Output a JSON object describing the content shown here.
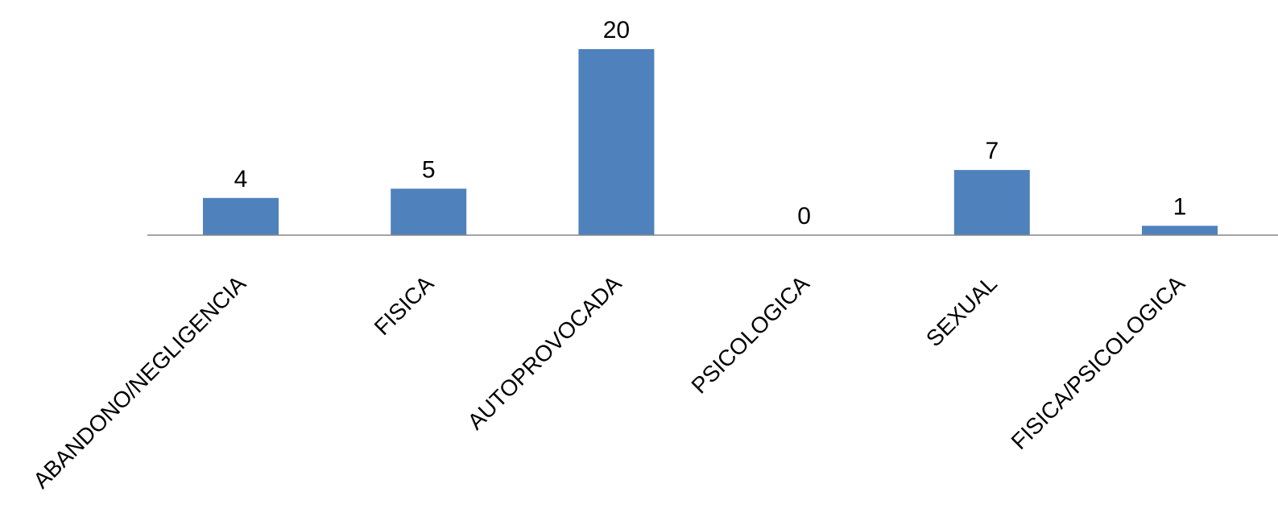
{
  "chart_data": {
    "type": "bar",
    "categories": [
      "ABANDONO/NEGLIGENCIA",
      "FISICA",
      "AUTOPROVOCADA",
      "PSICOLOGICA",
      "SEXUAL",
      "FISICA/PSICOLOGICA"
    ],
    "values": [
      4,
      5,
      20,
      0,
      7,
      1
    ],
    "data_labels": [
      "4",
      "5",
      "20",
      "0",
      "7",
      "1"
    ],
    "title": "",
    "xlabel": "",
    "ylabel": "",
    "ylim": [
      0,
      20
    ],
    "grid": false,
    "legend": "none",
    "bar_color": "#4f81bd",
    "axis_color": "#868686",
    "tick_label_rotation": "-45deg"
  }
}
